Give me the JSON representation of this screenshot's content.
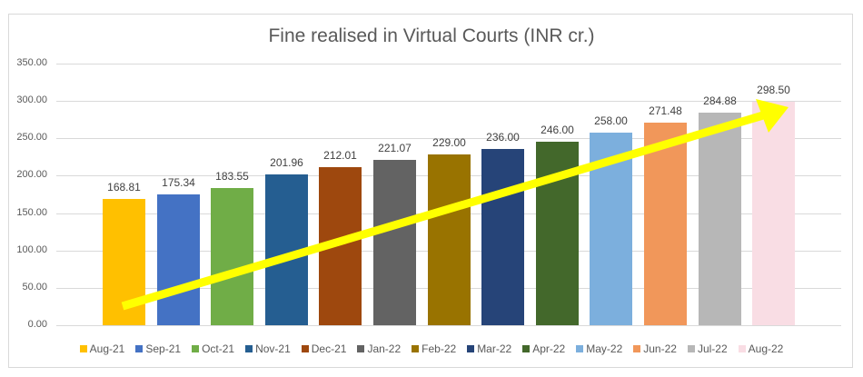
{
  "chart_data": {
    "type": "bar",
    "title": "Fine realised in Virtual Courts (INR cr.)",
    "xlabel": "",
    "ylabel": "",
    "ylim": [
      0,
      350
    ],
    "yticks": [
      "0.00",
      "50.00",
      "100.00",
      "150.00",
      "200.00",
      "250.00",
      "300.00",
      "350.00"
    ],
    "grid": true,
    "legend_position": "bottom",
    "categories": [
      "Aug-21",
      "Sep-21",
      "Oct-21",
      "Nov-21",
      "Dec-21",
      "Jan-22",
      "Feb-22",
      "Mar-22",
      "Apr-22",
      "May-22",
      "Jun-22",
      "Jul-22",
      "Aug-22"
    ],
    "values": [
      168.81,
      175.34,
      183.55,
      201.96,
      212.01,
      221.07,
      229.0,
      236.0,
      246.0,
      258.0,
      271.48,
      284.88,
      298.5
    ],
    "value_labels": [
      "168.81",
      "175.34",
      "183.55",
      "201.96",
      "212.01",
      "221.07",
      "229.00",
      "236.00",
      "246.00",
      "258.00",
      "271.48",
      "284.88",
      "298.50"
    ],
    "colors": [
      "#FFC000",
      "#4472C4",
      "#70AD47",
      "#255E91",
      "#9E480E",
      "#636363",
      "#997300",
      "#264478",
      "#43682B",
      "#7CAFDD",
      "#F1975A",
      "#B7B7B7",
      "#F9DDE4"
    ],
    "annotations": [
      {
        "type": "arrow",
        "description": "upward trend arrow",
        "color": "#FFFF00",
        "from": {
          "category": "Aug-21",
          "y": 25
        },
        "to": {
          "category": "Aug-22",
          "y": 292
        }
      }
    ]
  }
}
